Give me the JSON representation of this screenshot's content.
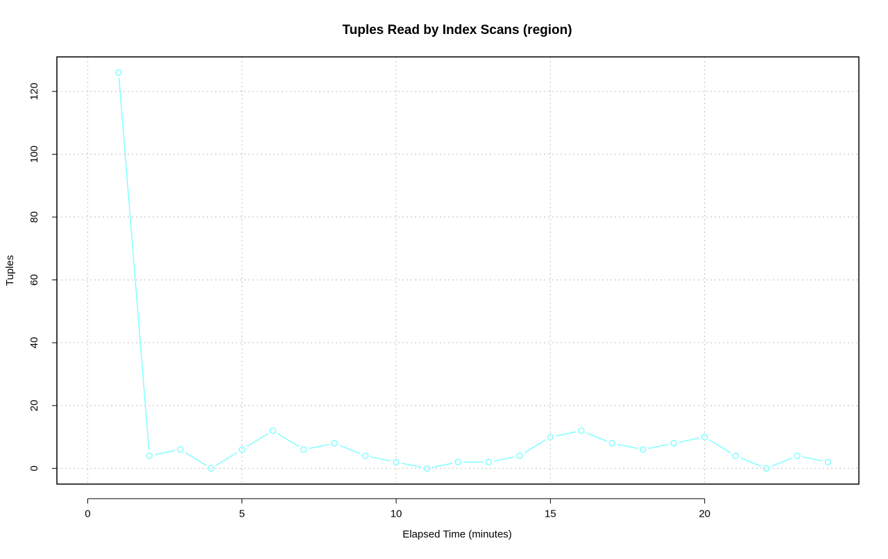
{
  "chart_data": {
    "type": "line",
    "title": "Tuples Read by Index Scans (region)",
    "xlabel": "Elapsed Time (minutes)",
    "ylabel": "Tuples",
    "xlim": [
      -1,
      25
    ],
    "ylim": [
      -5,
      131
    ],
    "x_ticks": [
      0,
      5,
      10,
      15,
      20
    ],
    "y_ticks": [
      0,
      20,
      40,
      60,
      80,
      100,
      120
    ],
    "grid": true,
    "legend": "none",
    "series": [
      {
        "color": "#80ffff",
        "marker": "open-circle",
        "x": [
          1,
          2,
          3,
          4,
          5,
          6,
          7,
          8,
          9,
          10,
          11,
          12,
          13,
          14,
          15,
          16,
          17,
          18,
          19,
          20,
          21,
          22,
          23,
          24
        ],
        "y": [
          126,
          4,
          6,
          0,
          6,
          12,
          6,
          8,
          4,
          2,
          0,
          2,
          2,
          4,
          10,
          12,
          8,
          6,
          8,
          10,
          4,
          0,
          4,
          2
        ]
      }
    ]
  }
}
